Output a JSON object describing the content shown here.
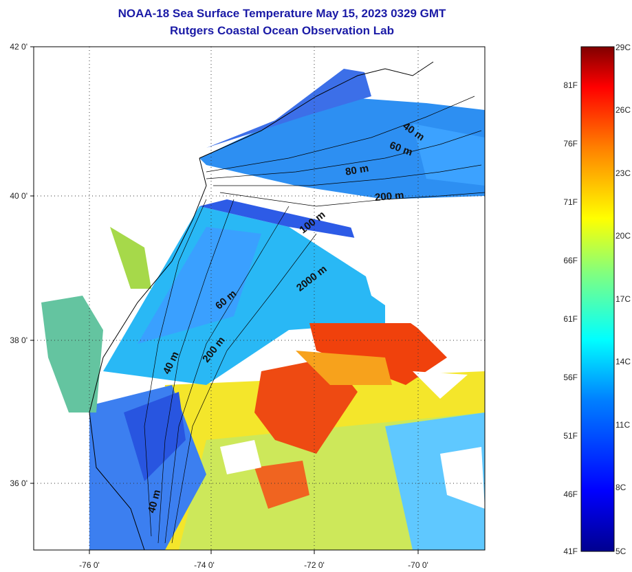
{
  "title": {
    "line1": "NOAA-18 Sea Surface Temperature May 15, 2023 0329 GMT",
    "line2": "Rutgers Coastal Ocean Observation Lab"
  },
  "axes": {
    "lat_labels": [
      "42 0'",
      "40 0'",
      "38 0'",
      "36 0'"
    ],
    "lon_labels": [
      "-76 0'",
      "-74 0'",
      "-72 0'",
      "-70 0'"
    ]
  },
  "depth_labels": [
    "40 m",
    "60 m",
    "80 m",
    "200 m",
    "100 m",
    "2000 m",
    "60 m",
    "200 m",
    "40 m",
    "40 m"
  ],
  "colorbar": {
    "fahrenheit": [
      "81F",
      "76F",
      "71F",
      "66F",
      "61F",
      "56F",
      "51F",
      "46F",
      "41F"
    ],
    "celsius": [
      "29C",
      "26C",
      "23C",
      "20C",
      "17C",
      "14C",
      "11C",
      "8C",
      "5C"
    ],
    "colors": [
      "#00008f",
      "#0000ff",
      "#0080ff",
      "#00ffff",
      "#80ff80",
      "#ffff00",
      "#ff8000",
      "#ff0000",
      "#800000"
    ]
  }
}
